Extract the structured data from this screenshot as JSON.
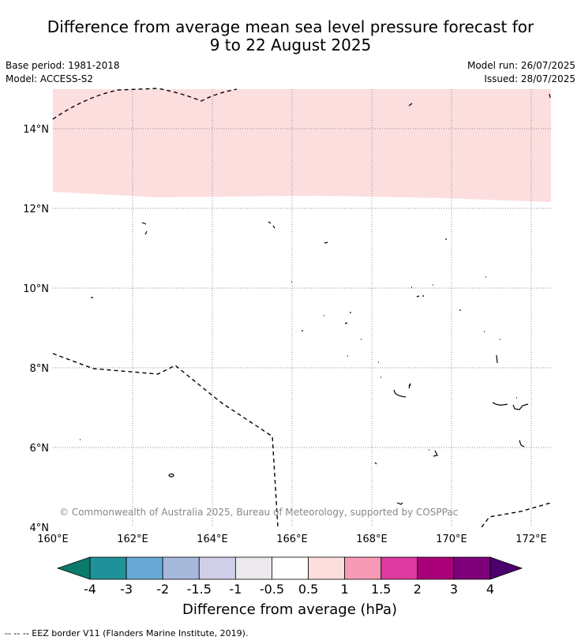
{
  "title_line1": "Difference from average mean sea level pressure forecast for",
  "title_line2": "9 to 22 August 2025",
  "base_period": "Base period: 1981-2018",
  "model": "Model: ACCESS-S2",
  "model_run": "Model run: 26/07/2025",
  "issued": "Issued: 28/07/2025",
  "copyright": "© Commonwealth of Australia 2025, Bureau of Meteorology, supported by COSPPac",
  "lat_labels": [
    "14°N",
    "12°N",
    "10°N",
    "8°N",
    "6°N",
    "4°N"
  ],
  "lon_labels": [
    "160°E",
    "162°E",
    "164°E",
    "166°E",
    "168°E",
    "170°E",
    "172°E"
  ],
  "colorbar": {
    "label": "Difference from average (hPa)",
    "ticks": [
      "-4",
      "-3",
      "-2",
      "-1.5",
      "-1",
      "-0.5",
      "0.5",
      "1",
      "1.5",
      "2",
      "3",
      "4"
    ],
    "colors": [
      "#0b7a6a",
      "#1f9199",
      "#68aad5",
      "#a6b9db",
      "#cfd0e8",
      "#ebe8ee",
      "#ffffff",
      "#fddede",
      "#f69ab8",
      "#dc3a9f",
      "#a90078",
      "#7e0078",
      "#4c006b"
    ]
  },
  "footnote": "--  --  -- EEZ border V11 (Flanders Marine Institute, 2019).",
  "map_data": {
    "lon_range": [
      160,
      172.5
    ],
    "lat_range": [
      4,
      15
    ],
    "shaded_region": {
      "range": "0.5 to 1 hPa",
      "color": "#fddede"
    }
  }
}
